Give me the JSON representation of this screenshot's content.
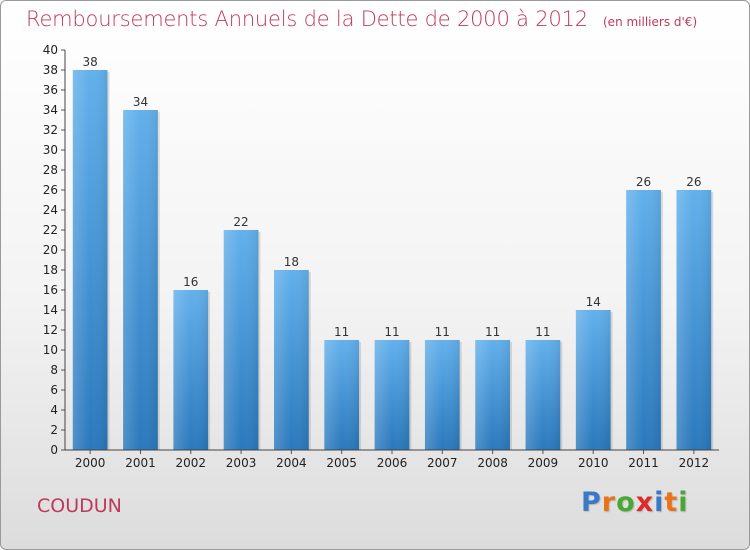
{
  "header": {
    "title": "Remboursements Annuels de la Dette de 2000 à 2012",
    "unit": "(en milliers d'€)"
  },
  "footer": {
    "commune": "COUDUN",
    "logo_letters": [
      {
        "char": "P",
        "color": "#3a78c8"
      },
      {
        "char": "r",
        "color": "#e8731a"
      },
      {
        "char": "o",
        "color": "#4aa832"
      },
      {
        "char": "x",
        "color": "#e02a2a"
      },
      {
        "char": "i",
        "color": "#3a78c8"
      },
      {
        "char": "t",
        "color": "#e8731a"
      },
      {
        "char": "i",
        "color": "#4aa832"
      }
    ]
  },
  "chart_data": {
    "type": "bar",
    "title": "Remboursements Annuels de la Dette de 2000 à 2012",
    "subtitle": "(en milliers d'€)",
    "xlabel": "",
    "ylabel": "",
    "categories": [
      "2000",
      "2001",
      "2002",
      "2003",
      "2004",
      "2005",
      "2006",
      "2007",
      "2008",
      "2009",
      "2010",
      "2011",
      "2012"
    ],
    "values": [
      38,
      34,
      16,
      22,
      18,
      11,
      11,
      11,
      11,
      11,
      14,
      26,
      26
    ],
    "ylim": [
      0,
      40
    ],
    "ytick_step": 2,
    "grid": false,
    "bar_color_top": "#62b0ec",
    "bar_color_bottom": "#2a78bc"
  }
}
